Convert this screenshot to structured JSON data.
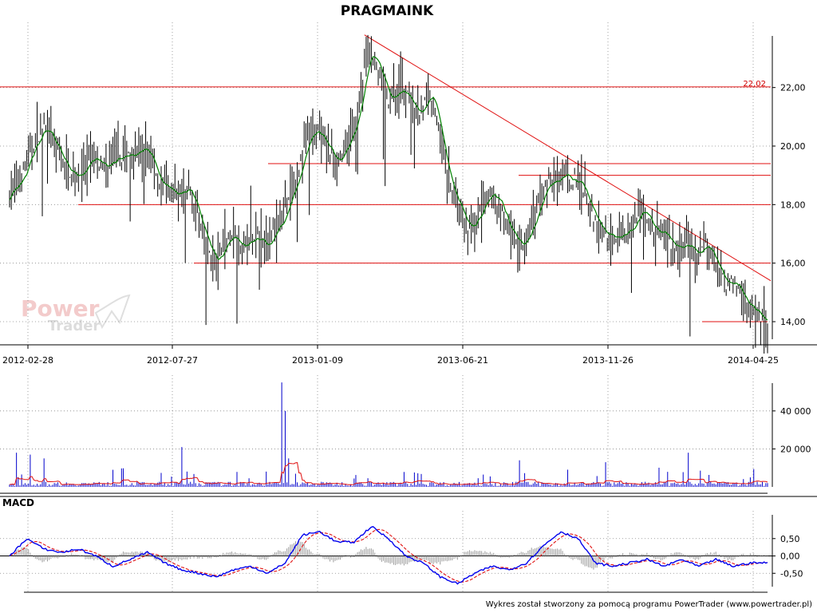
{
  "chart_data": [
    {
      "type": "candlestick",
      "title": "PRAGMAINK",
      "x_ticks": [
        "2012-02-28",
        "2012-07-27",
        "2013-01-09",
        "2013-06-21",
        "2013-11-26",
        "2014-04-25"
      ],
      "y_ticks": [
        "14,00",
        "16,00",
        "18,00",
        "20,00",
        "22,00"
      ],
      "ylim": [
        13.4,
        23.9
      ],
      "grid": true,
      "price_anchors": [
        [
          0,
          18.4
        ],
        [
          6,
          18.8
        ],
        [
          11,
          19.6
        ],
        [
          16,
          20.3
        ],
        [
          20,
          20.6
        ],
        [
          26,
          20.0
        ],
        [
          32,
          19.2
        ],
        [
          40,
          19.0
        ],
        [
          48,
          19.5
        ],
        [
          56,
          19.3
        ],
        [
          64,
          19.6
        ],
        [
          72,
          19.9
        ],
        [
          80,
          19.8
        ],
        [
          88,
          18.6
        ],
        [
          96,
          18.3
        ],
        [
          104,
          18.6
        ],
        [
          110,
          17.4
        ],
        [
          116,
          16.4
        ],
        [
          120,
          15.9
        ],
        [
          125,
          16.8
        ],
        [
          130,
          17.0
        ],
        [
          136,
          16.6
        ],
        [
          142,
          16.9
        ],
        [
          148,
          16.6
        ],
        [
          154,
          17.1
        ],
        [
          160,
          17.8
        ],
        [
          166,
          18.8
        ],
        [
          172,
          20.2
        ],
        [
          178,
          20.6
        ],
        [
          184,
          19.9
        ],
        [
          190,
          19.5
        ],
        [
          196,
          20.0
        ],
        [
          202,
          21.2
        ],
        [
          206,
          22.7
        ],
        [
          210,
          23.3
        ],
        [
          214,
          22.5
        ],
        [
          220,
          21.6
        ],
        [
          226,
          21.9
        ],
        [
          232,
          21.6
        ],
        [
          238,
          21.1
        ],
        [
          244,
          21.9
        ],
        [
          248,
          20.9
        ],
        [
          254,
          18.9
        ],
        [
          260,
          18.0
        ],
        [
          266,
          17.1
        ],
        [
          272,
          17.7
        ],
        [
          278,
          18.3
        ],
        [
          284,
          18.0
        ],
        [
          290,
          17.1
        ],
        [
          296,
          16.7
        ],
        [
          302,
          17.1
        ],
        [
          308,
          18.2
        ],
        [
          314,
          18.9
        ],
        [
          320,
          19.0
        ],
        [
          326,
          18.8
        ],
        [
          330,
          18.9
        ],
        [
          336,
          18.0
        ],
        [
          342,
          17.1
        ],
        [
          348,
          16.9
        ],
        [
          354,
          17.0
        ],
        [
          360,
          17.1
        ],
        [
          366,
          17.9
        ],
        [
          370,
          17.4
        ],
        [
          376,
          17.1
        ],
        [
          382,
          16.7
        ],
        [
          388,
          16.5
        ],
        [
          394,
          16.6
        ],
        [
          400,
          16.1
        ],
        [
          404,
          16.9
        ],
        [
          408,
          16.2
        ],
        [
          412,
          15.6
        ],
        [
          416,
          15.2
        ],
        [
          420,
          15.4
        ],
        [
          424,
          14.9
        ],
        [
          430,
          14.5
        ],
        [
          436,
          14.2
        ],
        [
          440,
          13.9
        ]
      ],
      "sma_label": "",
      "support_resistance_levels": [
        22.02,
        19.4,
        19.0,
        18.0,
        16.0,
        14.0
      ],
      "trendline": {
        "from": [
          206,
          23.8
        ],
        "to": [
          440,
          15.4
        ]
      },
      "level_label": "22,02",
      "colors": {
        "candle": "#000000",
        "sma": "#008000",
        "level": "#e01010",
        "grid": "#888888"
      }
    },
    {
      "type": "bar",
      "title": "",
      "y_ticks": [
        "20 000",
        "40 000"
      ],
      "ylim": [
        0,
        58000
      ],
      "volume_spikes": [
        [
          4,
          18000
        ],
        [
          12,
          17000
        ],
        [
          20,
          15000
        ],
        [
          60,
          9000
        ],
        [
          100,
          21000
        ],
        [
          158,
          55000
        ],
        [
          160,
          40000
        ],
        [
          162,
          15000
        ],
        [
          296,
          14000
        ],
        [
          346,
          13000
        ],
        [
          394,
          18000
        ],
        [
          430,
          5000
        ]
      ],
      "base_volume": 1600,
      "avg_line_color": "#e01010",
      "bar_color": "#0000cc"
    },
    {
      "type": "line",
      "title": "MACD",
      "y_ticks": [
        "0,50",
        "0,00",
        "-0,50"
      ],
      "ylim": [
        -1.0,
        1.3
      ],
      "macd_anchors": [
        [
          0,
          0.0
        ],
        [
          10,
          0.5
        ],
        [
          20,
          0.2
        ],
        [
          30,
          0.1
        ],
        [
          40,
          0.2
        ],
        [
          50,
          0.0
        ],
        [
          60,
          -0.3
        ],
        [
          70,
          -0.1
        ],
        [
          80,
          0.1
        ],
        [
          90,
          -0.2
        ],
        [
          100,
          -0.4
        ],
        [
          110,
          -0.5
        ],
        [
          120,
          -0.6
        ],
        [
          130,
          -0.4
        ],
        [
          140,
          -0.3
        ],
        [
          150,
          -0.5
        ],
        [
          160,
          -0.2
        ],
        [
          170,
          0.6
        ],
        [
          180,
          0.7
        ],
        [
          190,
          0.4
        ],
        [
          200,
          0.4
        ],
        [
          210,
          0.85
        ],
        [
          220,
          0.5
        ],
        [
          230,
          0.0
        ],
        [
          240,
          -0.2
        ],
        [
          250,
          -0.6
        ],
        [
          260,
          -0.8
        ],
        [
          270,
          -0.5
        ],
        [
          280,
          -0.3
        ],
        [
          290,
          -0.4
        ],
        [
          300,
          -0.2
        ],
        [
          310,
          0.3
        ],
        [
          320,
          0.7
        ],
        [
          330,
          0.5
        ],
        [
          340,
          -0.2
        ],
        [
          350,
          -0.3
        ],
        [
          360,
          -0.2
        ],
        [
          370,
          -0.1
        ],
        [
          380,
          -0.3
        ],
        [
          390,
          -0.1
        ],
        [
          400,
          -0.3
        ],
        [
          410,
          -0.1
        ],
        [
          420,
          -0.3
        ],
        [
          430,
          -0.2
        ],
        [
          440,
          -0.2
        ]
      ],
      "series_colors": {
        "macd": "#0000ee",
        "signal": "#e01010",
        "histogram": "#9a9a9a"
      }
    }
  ],
  "footer": "Wykres został stworzony za pomocą programu PowerTrader (www.powertrader.pl)",
  "logo": {
    "line1": "Power",
    "line2": "Trader"
  }
}
